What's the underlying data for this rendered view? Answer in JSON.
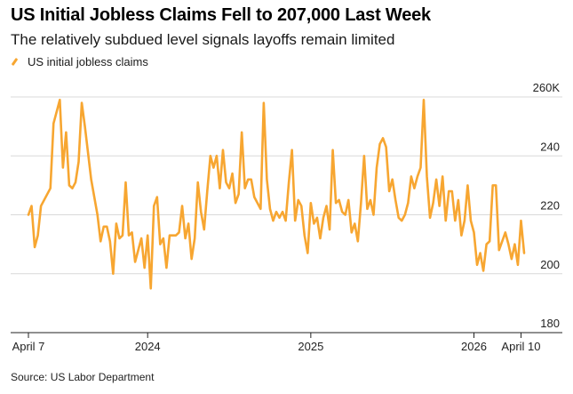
{
  "title": "US Initial Jobless Claims Fell to 207,000 Last Week",
  "subtitle": "The relatively subdued level signals layoffs remain limited",
  "legend_label": "US initial jobless claims",
  "source": "Source: US Labor Department",
  "colors": {
    "series": "#f7a631",
    "grid": "#d9d9d9",
    "axis": "#222222"
  },
  "chart_data": {
    "type": "line",
    "title": "US Initial Jobless Claims Fell to 207,000 Last Week",
    "xlabel": "",
    "ylabel": "",
    "ylim": [
      180,
      260
    ],
    "y_unit": "thousands",
    "y_ticks": [
      {
        "value": 260,
        "label": "260K"
      },
      {
        "value": 240,
        "label": "240"
      },
      {
        "value": 220,
        "label": "220"
      },
      {
        "value": 200,
        "label": "200"
      },
      {
        "value": 180,
        "label": "180"
      }
    ],
    "x_tick_labels": [
      "April 7",
      "2024",
      "2025",
      "2026",
      "April 10"
    ],
    "x_tick_positions": [
      0,
      38,
      90,
      142,
      157
    ],
    "series": [
      {
        "name": "US initial jobless claims",
        "values": [
          220,
          223,
          209,
          213,
          223,
          225,
          227,
          229,
          251,
          255,
          259,
          236,
          248,
          230,
          229,
          231,
          238,
          258,
          250,
          241,
          232,
          226,
          220,
          211,
          216,
          216,
          211,
          200,
          217,
          212,
          213,
          231,
          213,
          214,
          204,
          208,
          212,
          202,
          213,
          195,
          223,
          226,
          210,
          212,
          202,
          213,
          213,
          213,
          214,
          223,
          212,
          217,
          205,
          212,
          231,
          221,
          215,
          228,
          240,
          236,
          240,
          229,
          242,
          231,
          229,
          234,
          224,
          227,
          248,
          229,
          232,
          232,
          226,
          224,
          222,
          258,
          232,
          222,
          218,
          221,
          219,
          221,
          218,
          231,
          242,
          218,
          225,
          223,
          213,
          207,
          224,
          217,
          219,
          212,
          219,
          223,
          215,
          242,
          224,
          225,
          221,
          220,
          225,
          214,
          217,
          211,
          224,
          240,
          222,
          225,
          220,
          236,
          244,
          246,
          243,
          228,
          232,
          225,
          219,
          218,
          220,
          224,
          233,
          229,
          233,
          236,
          259,
          233,
          219,
          224,
          232,
          223,
          233,
          218,
          228,
          228,
          218,
          225,
          213,
          218,
          230,
          218,
          214,
          203,
          207,
          201,
          210,
          211,
          230,
          230,
          208,
          211,
          214,
          210,
          205,
          210,
          203,
          218,
          207
        ]
      }
    ]
  }
}
